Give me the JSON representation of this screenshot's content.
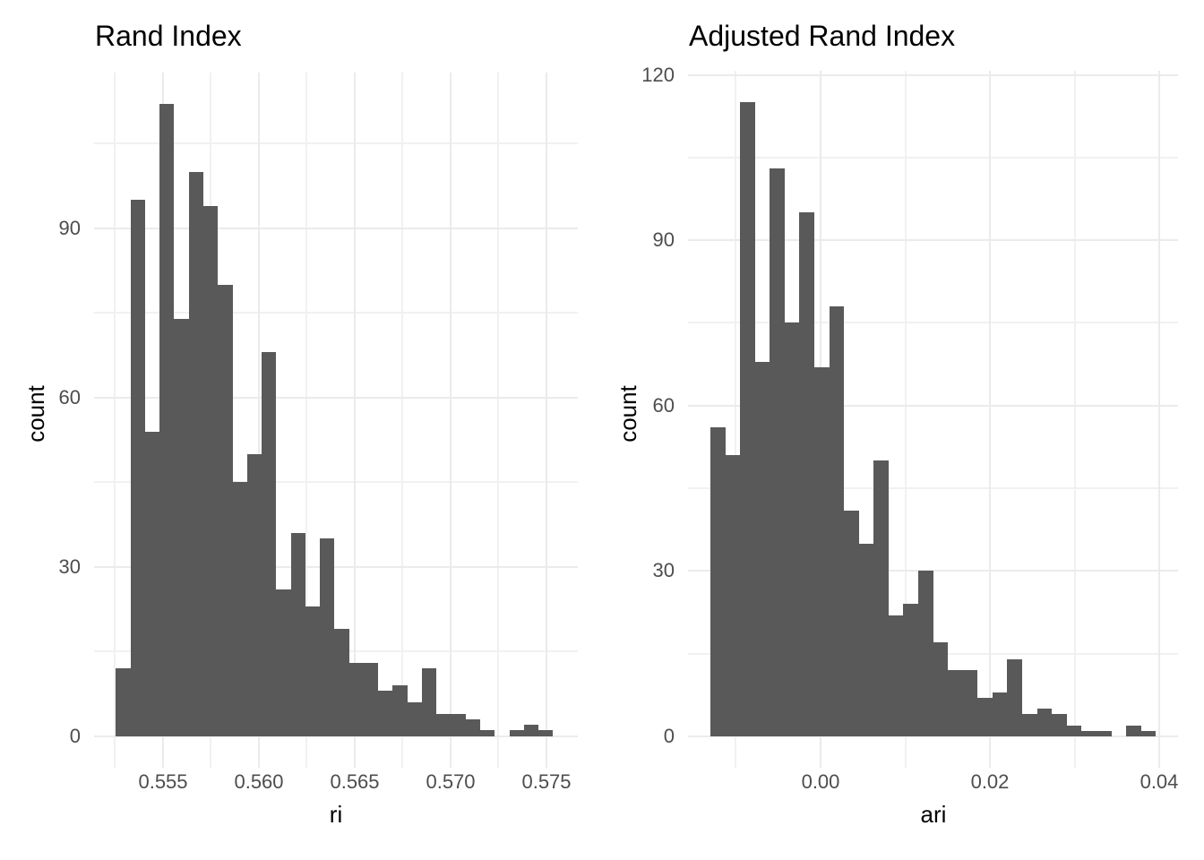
{
  "figure": {
    "background": "#ffffff",
    "colors": {
      "bar_fill": "#595959",
      "axis_text": "#4d4d4d",
      "title_text": "#000000",
      "grid_major": "#ebebeb",
      "grid_minor": "#f1f1f1"
    }
  },
  "chart_data": [
    {
      "type": "bar",
      "subtype": "histogram",
      "title": "Rand Index",
      "xlabel": "ri",
      "ylabel": "count",
      "legend": "none",
      "grid": true,
      "bar_color": "#595959",
      "n_bins": 30,
      "bin_start": 0.55255,
      "bin_width": 0.00076,
      "bin_centers": [
        0.55293,
        0.55369,
        0.55445,
        0.55521,
        0.55597,
        0.55673,
        0.55749,
        0.55825,
        0.55901,
        0.55977,
        0.56053,
        0.56129,
        0.56205,
        0.56281,
        0.56357,
        0.56433,
        0.56509,
        0.56585,
        0.56661,
        0.56737,
        0.56813,
        0.56889,
        0.56965,
        0.57041,
        0.57117,
        0.57193,
        0.57269,
        0.57345,
        0.57421,
        0.57497
      ],
      "counts": [
        12,
        95,
        54,
        112,
        74,
        100,
        94,
        80,
        45,
        50,
        68,
        26,
        36,
        23,
        35,
        19,
        13,
        13,
        8,
        9,
        6,
        12,
        4,
        4,
        3,
        1,
        0,
        1,
        2,
        1
      ],
      "x_ticks": [
        {
          "v": 0.555,
          "label": "0.555"
        },
        {
          "v": 0.56,
          "label": "0.560"
        },
        {
          "v": 0.565,
          "label": "0.565"
        },
        {
          "v": 0.57,
          "label": "0.570"
        },
        {
          "v": 0.575,
          "label": "0.575"
        }
      ],
      "x_minor": [
        0.5525,
        0.5575,
        0.5625,
        0.5675,
        0.5725
      ],
      "y_ticks": [
        {
          "v": 0,
          "label": "0"
        },
        {
          "v": 30,
          "label": "30"
        },
        {
          "v": 60,
          "label": "60"
        },
        {
          "v": 90,
          "label": "90"
        }
      ],
      "y_minor": [
        15,
        45,
        75,
        105
      ],
      "x_range": [
        0.55141,
        0.57664
      ],
      "y_range": [
        -5.6,
        117.6
      ]
    },
    {
      "type": "bar",
      "subtype": "histogram",
      "title": "Adjusted Rand Index",
      "xlabel": "ari",
      "ylabel": "count",
      "legend": "none",
      "grid": true,
      "bar_color": "#595959",
      "n_bins": 30,
      "bin_start": -0.01302,
      "bin_width": 0.001754,
      "bin_centers": [
        -0.012143,
        -0.010389,
        -0.008635,
        -0.006881,
        -0.005127,
        -0.003373,
        -0.001619,
        0.000135,
        0.001889,
        0.003643,
        0.005397,
        0.007151,
        0.008905,
        0.010659,
        0.012413,
        0.014167,
        0.015921,
        0.017675,
        0.019429,
        0.021183,
        0.022937,
        0.024691,
        0.026445,
        0.028199,
        0.029953,
        0.031707,
        0.033461,
        0.035215,
        0.036969,
        0.038723
      ],
      "counts": [
        56,
        51,
        115,
        68,
        103,
        75,
        95,
        67,
        78,
        41,
        35,
        50,
        22,
        24,
        30,
        17,
        12,
        12,
        7,
        8,
        14,
        4,
        5,
        4,
        2,
        1,
        1,
        0,
        2,
        1
      ],
      "x_ticks": [
        {
          "v": 0.0,
          "label": "0.00"
        },
        {
          "v": 0.02,
          "label": "0.02"
        },
        {
          "v": 0.04,
          "label": "0.04"
        }
      ],
      "x_minor": [
        -0.01,
        0.01,
        0.03
      ],
      "y_ticks": [
        {
          "v": 0,
          "label": "0"
        },
        {
          "v": 30,
          "label": "30"
        },
        {
          "v": 60,
          "label": "60"
        },
        {
          "v": 90,
          "label": "90"
        },
        {
          "v": 120,
          "label": "120"
        }
      ],
      "y_minor": [
        15,
        45,
        75,
        105
      ],
      "x_range": [
        -0.01566,
        0.04222
      ],
      "y_range": [
        -5.7,
        120.75
      ]
    }
  ]
}
